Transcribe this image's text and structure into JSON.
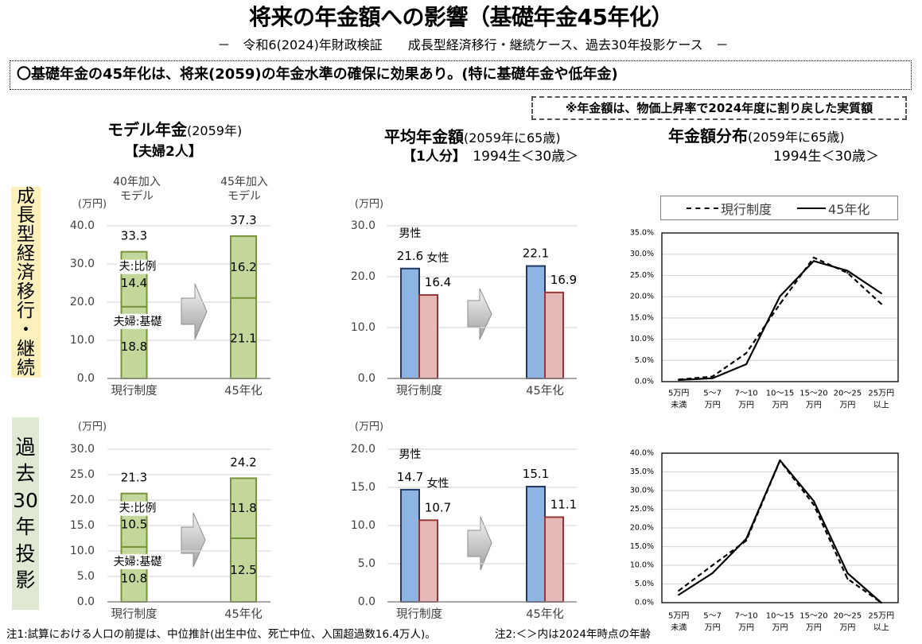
{
  "title": "将来の年金額への影響（基礎年金45年化）",
  "subtitle": "－　令和6(2024)年財政検証　　成長型経済移行・継続ケース、過去30年投影ケース　－",
  "summary": "〇基礎年金の45年化は、将来(2059)の年金水準の確保に効果あり。(特に基礎年金や低年金)",
  "note": "※年金額は、物価上昇率で2024年度に割り戻した実質額",
  "sections": {
    "model": {
      "title": "モデル年金",
      "title_paren": "(2059年)",
      "sub": "【夫婦2人】"
    },
    "average": {
      "title": "平均年金額",
      "title_paren": "(2059年に65歳)",
      "sub_bold": "【1人分】",
      "sub": "　1994生＜30歳＞"
    },
    "distribution": {
      "title": "年金額分布",
      "title_paren": "(2059年に65歳)",
      "sub": "1994生＜30歳＞"
    }
  },
  "scenarios": [
    {
      "label": "成長型経済移行・継続"
    },
    {
      "label": "過去30年投影"
    }
  ],
  "footnotes": [
    "注1:試算における人口の前提は、中位推計(出生中位、死亡中位、入国超過数16.4万人)。",
    "注2:＜＞内は2024年時点の年齢"
  ],
  "chart_data": [
    {
      "id": "model-pension-growth",
      "type": "bar",
      "stacked": true,
      "scenario": "成長型経済移行・継続",
      "title": "モデル年金(2059年)【夫婦2人】",
      "unit_label": "(万円)",
      "categories": [
        "現行制度",
        "45年化"
      ],
      "category_headers": [
        [
          "40年加入",
          "モデル"
        ],
        [
          "45年加入",
          "モデル"
        ]
      ],
      "series": [
        {
          "name": "夫婦:基礎",
          "values": [
            18.8,
            21.1
          ],
          "fill": "#c4d79b",
          "stroke": "#77933c"
        },
        {
          "name": "夫:比例",
          "values": [
            14.4,
            16.2
          ],
          "fill": "#c4d79b",
          "stroke": "#77933c"
        }
      ],
      "totals": [
        33.3,
        37.3
      ],
      "ylim": [
        0,
        40
      ],
      "yticks": [
        0,
        10,
        20,
        30,
        40
      ],
      "ytick_labels": [
        "0.0",
        "10.0",
        "20.0",
        "30.0",
        "40.0"
      ],
      "grid": true
    },
    {
      "id": "average-pension-growth",
      "type": "bar",
      "stacked": false,
      "scenario": "成長型経済移行・継続",
      "title": "平均年金額(2059年に65歳)【1人分】",
      "unit_label": "(万円)",
      "categories": [
        "現行制度",
        "45年化"
      ],
      "series": [
        {
          "name": "男性",
          "values": [
            21.6,
            22.1
          ],
          "fill": "#8db4e2",
          "stroke": "#1f3864"
        },
        {
          "name": "女性",
          "values": [
            16.4,
            16.9
          ],
          "fill": "#e6b9b8",
          "stroke": "#953735"
        }
      ],
      "ylim": [
        0,
        30
      ],
      "yticks": [
        0,
        10,
        20,
        30
      ],
      "ytick_labels": [
        "0.0",
        "10.0",
        "20.0",
        "30.0"
      ],
      "grid": true
    },
    {
      "id": "distribution-growth",
      "type": "line",
      "scenario": "成長型経済移行・継続",
      "title": "年金額分布(2059年に65歳)",
      "categories": [
        [
          "5万円",
          "未満"
        ],
        [
          "5～7",
          "万円"
        ],
        [
          "7～10",
          "万円"
        ],
        [
          "10～15",
          "万円"
        ],
        [
          "15～20",
          "万円"
        ],
        [
          "20～25",
          "万円"
        ],
        [
          "25万円",
          "以上"
        ]
      ],
      "series": [
        {
          "name": "現行制度",
          "style": "dashed",
          "values": [
            0.5,
            1.2,
            6.7,
            18.3,
            29.2,
            25.6,
            18.3
          ]
        },
        {
          "name": "45年化",
          "style": "solid",
          "values": [
            0.4,
            0.8,
            4.1,
            20.1,
            28.4,
            26.1,
            20.8
          ]
        }
      ],
      "ylim": [
        0,
        35
      ],
      "yticks": [
        0,
        5,
        10,
        15,
        20,
        25,
        30,
        35
      ],
      "ytick_labels": [
        "0.0%",
        "5.0%",
        "10.0%",
        "15.0%",
        "20.0%",
        "25.0%",
        "30.0%",
        "35.0%"
      ],
      "grid": true,
      "legend": "top"
    },
    {
      "id": "model-pension-past30",
      "type": "bar",
      "stacked": true,
      "scenario": "過去30年投影",
      "unit_label": "(万円)",
      "categories": [
        "現行制度",
        "45年化"
      ],
      "series": [
        {
          "name": "夫婦:基礎",
          "values": [
            10.8,
            12.5
          ],
          "fill": "#c4d79b",
          "stroke": "#77933c"
        },
        {
          "name": "夫:比例",
          "values": [
            10.5,
            11.8
          ],
          "fill": "#c4d79b",
          "stroke": "#77933c"
        }
      ],
      "totals": [
        21.3,
        24.2
      ],
      "ylim": [
        0,
        30
      ],
      "yticks": [
        0,
        5,
        10,
        15,
        20,
        25,
        30
      ],
      "ytick_labels": [
        "0.0",
        "5.0",
        "10.0",
        "15.0",
        "20.0",
        "25.0",
        "30.0"
      ],
      "grid": true
    },
    {
      "id": "average-pension-past30",
      "type": "bar",
      "stacked": false,
      "scenario": "過去30年投影",
      "unit_label": "(万円)",
      "categories": [
        "現行制度",
        "45年化"
      ],
      "series": [
        {
          "name": "男性",
          "values": [
            14.7,
            15.1
          ],
          "fill": "#8db4e2",
          "stroke": "#1f3864"
        },
        {
          "name": "女性",
          "values": [
            10.7,
            11.1
          ],
          "fill": "#e6b9b8",
          "stroke": "#953735"
        }
      ],
      "ylim": [
        0,
        20
      ],
      "yticks": [
        0,
        5,
        10,
        15,
        20
      ],
      "ytick_labels": [
        "0.0",
        "5.0",
        "10.0",
        "15.0",
        "20.0"
      ],
      "grid": true
    },
    {
      "id": "distribution-past30",
      "type": "line",
      "scenario": "過去30年投影",
      "categories": [
        [
          "5万円",
          "未満"
        ],
        [
          "5～7",
          "万円"
        ],
        [
          "7～10",
          "万円"
        ],
        [
          "10～15",
          "万円"
        ],
        [
          "15～20",
          "万円"
        ],
        [
          "20～25",
          "万円"
        ],
        [
          "25万円",
          "以上"
        ]
      ],
      "series": [
        {
          "name": "現行制度",
          "style": "dashed",
          "values": [
            3.2,
            10.0,
            16.6,
            38.0,
            26.2,
            6.4,
            0.0
          ]
        },
        {
          "name": "45年化",
          "style": "solid",
          "values": [
            2.1,
            7.9,
            17.1,
            38.1,
            27.2,
            7.9,
            0.0
          ]
        }
      ],
      "ylim": [
        0,
        40
      ],
      "yticks": [
        0,
        5,
        10,
        15,
        20,
        25,
        30,
        35,
        40
      ],
      "ytick_labels": [
        "0.0%",
        "5.0%",
        "10.0%",
        "15.0%",
        "20.0%",
        "25.0%",
        "30.0%",
        "35.0%",
        "40.0%"
      ],
      "grid": true
    }
  ]
}
